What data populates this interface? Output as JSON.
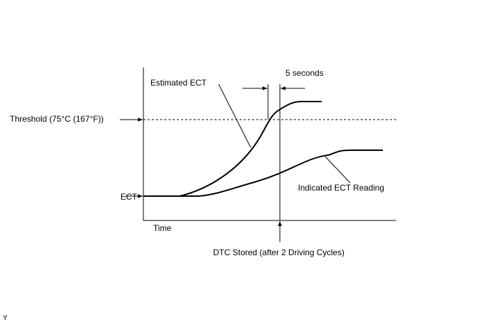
{
  "diagram": {
    "labels": {
      "five_seconds": "5 seconds",
      "estimated_ect": "Estimated ECT",
      "threshold": "Threshold (75°C (167°F))",
      "ect": "ECT",
      "indicated_ect": "Indicated ECT Reading",
      "time": "Time",
      "dtc_stored": "DTC Stored (after 2 Driving Cycles)"
    },
    "figure_code": "Y"
  }
}
